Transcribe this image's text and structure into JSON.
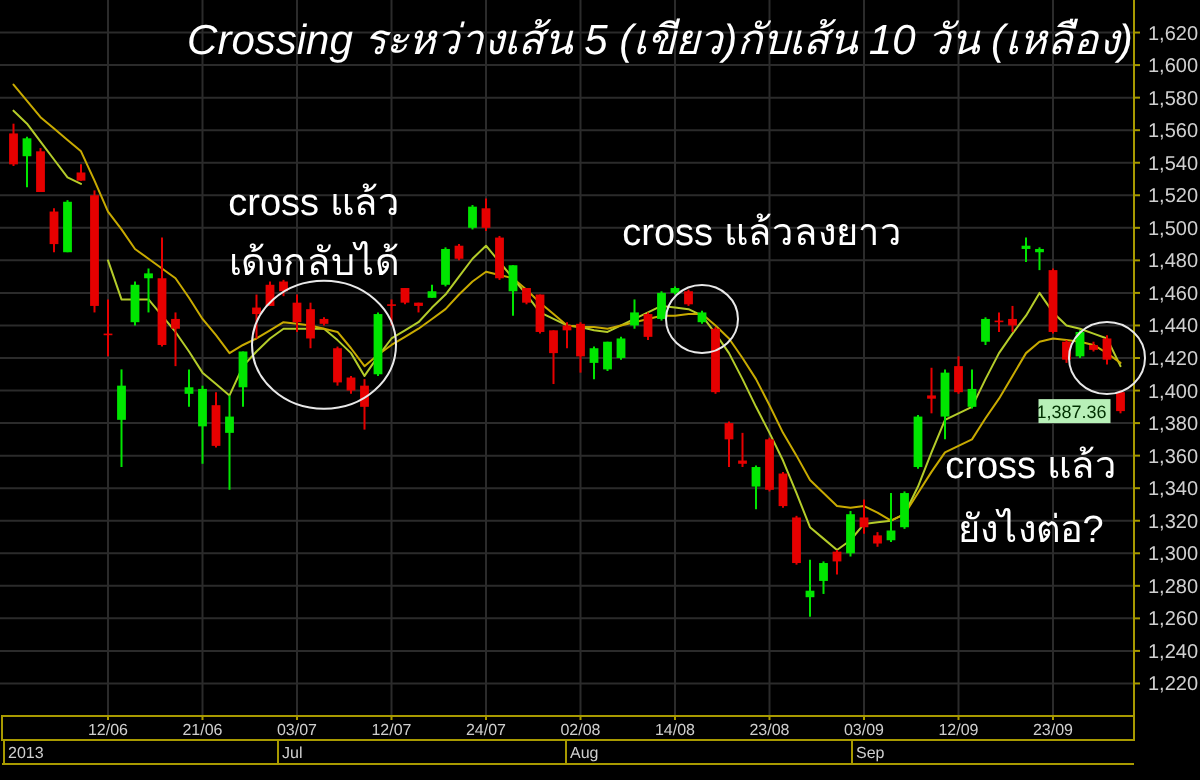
{
  "chart_data": {
    "type": "candlestick",
    "title": "Crossing ระหว่างเส้น 5 (เขียว)กับเส้น 10 วัน (เหลือง)",
    "categories": [
      null,
      null,
      null,
      null,
      null,
      null,
      null,
      "12/06",
      null,
      null,
      null,
      null,
      null,
      null,
      "21/06",
      null,
      null,
      null,
      null,
      null,
      null,
      "03/07",
      null,
      null,
      null,
      null,
      null,
      null,
      "12/07",
      null,
      null,
      null,
      null,
      null,
      null,
      "24/07",
      null,
      null,
      null,
      null,
      null,
      null,
      "02/08",
      null,
      null,
      null,
      null,
      null,
      null,
      "14/08",
      null,
      null,
      null,
      null,
      null,
      null,
      "23/08",
      null,
      null,
      null,
      null,
      null,
      null,
      "03/09",
      null,
      null,
      null,
      null,
      null,
      null,
      "12/09",
      null,
      null,
      null,
      null,
      null,
      null,
      "23/09",
      null,
      null,
      null,
      null,
      null
    ],
    "ohlc": [
      [
        1558,
        1564,
        1538,
        1539
      ],
      [
        1544,
        1556,
        1525,
        1555
      ],
      [
        1547,
        1549,
        1522,
        1522
      ],
      [
        1510,
        1512,
        1485,
        1490
      ],
      [
        1485,
        1517,
        1485,
        1516
      ],
      [
        1534,
        1539,
        1529,
        1529
      ],
      [
        1520,
        1523,
        1448,
        1452
      ],
      [
        1435,
        1456,
        1421,
        1434
      ],
      [
        1382,
        1413,
        1353,
        1403
      ],
      [
        1442,
        1467,
        1440,
        1465
      ],
      [
        1469,
        1475,
        1448,
        1472
      ],
      [
        1469,
        1494,
        1427,
        1428
      ],
      [
        1444,
        1448,
        1415,
        1438
      ],
      [
        1398,
        1413,
        1390,
        1402
      ],
      [
        1378,
        1403,
        1355,
        1401
      ],
      [
        1391,
        1399,
        1365,
        1366
      ],
      [
        1374,
        1397,
        1339,
        1384
      ],
      [
        1402,
        1424,
        1390,
        1424
      ],
      [
        1451,
        1459,
        1432,
        1447
      ],
      [
        1465,
        1467,
        1452,
        1452
      ],
      [
        1467,
        1468,
        1458,
        1461
      ],
      [
        1454,
        1459,
        1436,
        1442
      ],
      [
        1450,
        1454,
        1426,
        1432
      ],
      [
        1444,
        1445,
        1440,
        1441
      ],
      [
        1426,
        1427,
        1403,
        1405
      ],
      [
        1408,
        1409,
        1398,
        1400
      ],
      [
        1403,
        1407,
        1376,
        1390
      ],
      [
        1410,
        1448,
        1409,
        1447
      ],
      [
        1453,
        1456,
        1440,
        1452
      ],
      [
        1463,
        1463,
        1453,
        1454
      ],
      [
        1454,
        1454,
        1448,
        1452
      ],
      [
        1457,
        1465,
        1457,
        1461
      ],
      [
        1465,
        1488,
        1464,
        1487
      ],
      [
        1489,
        1490,
        1480,
        1481
      ],
      [
        1500,
        1514,
        1499,
        1513
      ],
      [
        1512,
        1518,
        1498,
        1500
      ],
      [
        1494,
        1495,
        1468,
        1469
      ],
      [
        1461,
        1477,
        1446,
        1477
      ],
      [
        1463,
        1463,
        1453,
        1454
      ],
      [
        1459,
        1459,
        1435,
        1436
      ],
      [
        1437,
        1437,
        1404,
        1423
      ],
      [
        1440,
        1442,
        1426,
        1437
      ],
      [
        1441,
        1442,
        1411,
        1421
      ],
      [
        1417,
        1427,
        1407,
        1426
      ],
      [
        1413,
        1430,
        1412,
        1430
      ],
      [
        1420,
        1433,
        1419,
        1432
      ],
      [
        1440,
        1456,
        1438,
        1448
      ],
      [
        1447,
        1448,
        1431,
        1433
      ],
      [
        1444,
        1461,
        1443,
        1460
      ],
      [
        1460,
        1464,
        1459,
        1463
      ],
      [
        1461,
        1462,
        1452,
        1453
      ],
      [
        1442,
        1449,
        1441,
        1448
      ],
      [
        1438,
        1439,
        1398,
        1399
      ],
      [
        1380,
        1381,
        1353,
        1370
      ],
      [
        1357,
        1374,
        1353,
        1355
      ],
      [
        1341,
        1354,
        1327,
        1353
      ],
      [
        1370,
        1371,
        1338,
        1339
      ],
      [
        1349,
        1350,
        1328,
        1329
      ],
      [
        1322,
        1323,
        1293,
        1294
      ],
      [
        1273,
        1296,
        1261,
        1277
      ],
      [
        1283,
        1295,
        1275,
        1294
      ],
      [
        1301,
        1302,
        1287,
        1295
      ],
      [
        1300,
        1326,
        1298,
        1324
      ],
      [
        1322,
        1333,
        1312,
        1316
      ],
      [
        1311,
        1313,
        1304,
        1306
      ],
      [
        1308,
        1337,
        1307,
        1314
      ],
      [
        1316,
        1338,
        1315,
        1337
      ],
      [
        1353,
        1385,
        1352,
        1384
      ],
      [
        1397,
        1414,
        1386,
        1395
      ],
      [
        1384,
        1413,
        1370,
        1411
      ],
      [
        1415,
        1421,
        1398,
        1399
      ],
      [
        1390,
        1413,
        1389,
        1401
      ],
      [
        1430,
        1445,
        1428,
        1444
      ],
      [
        1443,
        1448,
        1436,
        1442
      ],
      [
        1444,
        1452,
        1436,
        1440
      ],
      [
        1487,
        1494,
        1479,
        1489
      ],
      [
        1485,
        1488,
        1474,
        1487
      ],
      [
        1474,
        1475,
        1435,
        1436
      ],
      [
        1430,
        1431,
        1417,
        1419
      ],
      [
        1421,
        1437,
        1420,
        1436
      ],
      [
        1428,
        1430,
        1424,
        1425
      ],
      [
        1432,
        1434,
        1416,
        1419
      ],
      [
        1399,
        1400,
        1386,
        1387.36
      ]
    ],
    "colors": [
      "#e60000",
      "#00e600",
      "#e60000",
      "#e60000",
      "#00e600",
      "#e60000",
      "#e60000",
      "#e60000",
      "#00e600",
      "#00e600",
      "#00e600",
      "#e60000",
      "#e60000",
      "#00e600",
      "#00e600",
      "#e60000",
      "#00e600",
      "#00e600",
      "#e60000",
      "#e60000",
      "#e60000",
      "#e60000",
      "#e60000",
      "#e60000",
      "#e60000",
      "#e60000",
      "#e60000",
      "#00e600",
      "#e60000",
      "#e60000",
      "#e60000",
      "#00e600",
      "#00e600",
      "#e60000",
      "#00e600",
      "#e60000",
      "#e60000",
      "#00e600",
      "#e60000",
      "#e60000",
      "#e60000",
      "#e60000",
      "#e60000",
      "#00e600",
      "#00e600",
      "#00e600",
      "#00e600",
      "#e60000",
      "#00e600",
      "#00e600",
      "#e60000",
      "#00e600",
      "#e60000",
      "#e60000",
      "#e60000",
      "#00e600",
      "#e60000",
      "#e60000",
      "#e60000",
      "#00e600",
      "#00e600",
      "#e60000",
      "#00e600",
      "#e60000",
      "#e60000",
      "#00e600",
      "#00e600",
      "#00e600",
      "#e60000",
      "#00e600",
      "#e60000",
      "#00e600",
      "#00e600",
      "#e60000",
      "#e60000",
      "#00e600",
      "#00e600",
      "#e60000",
      "#e60000",
      "#00e600",
      "#e60000",
      "#e60000",
      "#e60000"
    ],
    "value_labels": [
      null,
      null,
      null,
      null,
      null,
      null,
      null,
      null,
      null,
      null,
      null,
      null,
      null,
      null,
      null,
      null,
      null,
      null,
      null,
      null,
      null,
      null,
      null,
      null,
      null,
      null,
      null,
      null,
      null,
      null,
      null,
      null,
      null,
      null,
      null,
      null,
      null,
      null,
      null,
      null,
      null,
      null,
      null,
      null,
      null,
      null,
      null,
      null,
      null,
      null,
      null,
      null,
      null,
      null,
      null,
      null,
      null,
      null,
      null,
      null,
      null,
      null,
      null,
      null,
      null,
      null,
      null,
      null,
      null,
      null,
      null,
      null,
      null,
      null,
      null,
      null,
      null,
      null,
      null,
      null,
      null,
      null,
      "1,387.36"
    ],
    "series": [
      {
        "type": "line",
        "color": "#b4cc2a",
        "values": [
          1572,
          1564,
          1553,
          1542,
          1531,
          1527,
          null,
          1480,
          1456,
          1456,
          1456,
          1446,
          1436,
          1424,
          1411,
          1404,
          1397,
          1415,
          1424,
          1432,
          1438,
          1438,
          1438,
          1438,
          1431,
          1423,
          1409,
          1421,
          1432,
          1437,
          1442,
          1451,
          1459,
          1470,
          1481,
          1489,
          1479,
          1469,
          1459,
          1448,
          1444,
          1440,
          1439,
          1437,
          1436,
          1440,
          1444,
          1448,
          1452,
          1451,
          1450,
          1446,
          1435,
          1423,
          1407,
          1390,
          1374,
          1357,
          1337,
          1316,
          1309,
          1302,
          1308,
          1318,
          1319,
          1320,
          1324,
          1341,
          1362,
          1382,
          1386,
          1390,
          1407,
          1423,
          1435,
          1446,
          1460,
          1448,
          1440,
          1438,
          1435,
          1432,
          1415
        ]
      },
      {
        "type": "line",
        "color": "#c8aa00",
        "values": [
          1588,
          1578,
          1568,
          1561,
          1554,
          1547,
          1529,
          1510,
          1499,
          1487,
          1481,
          1475,
          1469,
          1457,
          1444,
          1434,
          1423,
          1428,
          1432,
          1437,
          1442,
          1441,
          1440,
          1438,
          1436,
          1426,
          1415,
          1422,
          1428,
          1433,
          1438,
          1444,
          1450,
          1459,
          1467,
          1473,
          1471,
          1469,
          1462,
          1454,
          1447,
          1440,
          1439,
          1439,
          1438,
          1440,
          1442,
          1444,
          1446,
          1446,
          1447,
          1447,
          1440,
          1432,
          1420,
          1407,
          1391,
          1374,
          1360,
          1345,
          1337,
          1329,
          1328,
          1329,
          1325,
          1320,
          1324,
          1337,
          1350,
          1362,
          1366,
          1370,
          1383,
          1395,
          1409,
          1423,
          1430,
          1432,
          1431,
          1430,
          1428,
          1423,
          1417
        ]
      }
    ],
    "ylim": [
      1200,
      1640
    ],
    "yticks": [
      {
        "value": 1220,
        "label": "1,220"
      },
      {
        "value": 1240,
        "label": "1,240"
      },
      {
        "value": 1260,
        "label": "1,260"
      },
      {
        "value": 1280,
        "label": "1,280"
      },
      {
        "value": 1300,
        "label": "1,300"
      },
      {
        "value": 1320,
        "label": "1,320"
      },
      {
        "value": 1340,
        "label": "1,340"
      },
      {
        "value": 1360,
        "label": "1,360"
      },
      {
        "value": 1380,
        "label": "1,380"
      },
      {
        "value": 1400,
        "label": "1,400"
      },
      {
        "value": 1420,
        "label": "1,420"
      },
      {
        "value": 1440,
        "label": "1,440"
      },
      {
        "value": 1460,
        "label": "1,460"
      },
      {
        "value": 1480,
        "label": "1,480"
      },
      {
        "value": 1500,
        "label": "1,500"
      },
      {
        "value": 1520,
        "label": "1,520"
      },
      {
        "value": 1540,
        "label": "1,540"
      },
      {
        "value": 1560,
        "label": "1,560"
      },
      {
        "value": 1580,
        "label": "1,580"
      },
      {
        "value": 1600,
        "label": "1,600"
      },
      {
        "value": 1620,
        "label": "1,620"
      }
    ],
    "grid": true,
    "marker": "none",
    "line_style": "solid",
    "annotations": [
      {
        "text": "cross แล้ว\nเด้งกลับได้",
        "x": "03/07",
        "y": 1438
      },
      {
        "text": "cross แล้วลงยาว",
        "x": "14/08",
        "y": 1444
      },
      {
        "text": "cross แล้ว\nยังไงต่อ?",
        "x": "23/09",
        "y": 1420
      },
      "2013",
      "Jul",
      "Aug",
      "Sep"
    ]
  }
}
